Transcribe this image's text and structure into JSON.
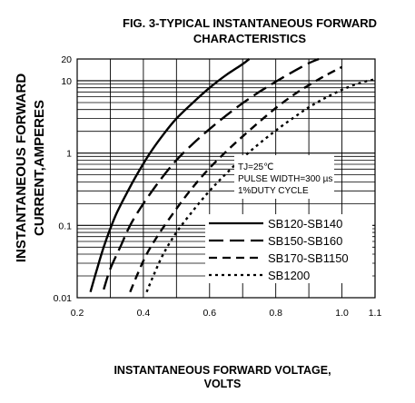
{
  "chart_data": {
    "type": "line",
    "title": "FIG. 3-TYPICAL INSTANTANEOUS FORWARD",
    "subtitle": "CHARACTERISTICS",
    "ylabel_line1": "INSTANTANEOUS FORWARD",
    "ylabel_line2": "CURRENT,AMPERES",
    "xlabel_line1": "INSTANTANEOUS FORWARD VOLTAGE,",
    "xlabel_line2": "VOLTS",
    "xlim": [
      0.2,
      1.1
    ],
    "ylim": [
      0.01,
      20
    ],
    "yscale": "log",
    "grid": true,
    "x_ticks": [
      {
        "value": 0.2,
        "label": "0.2"
      },
      {
        "value": 0.4,
        "label": "0.4"
      },
      {
        "value": 0.6,
        "label": "0.6"
      },
      {
        "value": 0.8,
        "label": "0.8"
      },
      {
        "value": 1.0,
        "label": "1.0"
      },
      {
        "value": 1.1,
        "label": "1.1"
      }
    ],
    "y_ticks": [
      {
        "value": 0.01,
        "label": "0.01"
      },
      {
        "value": 0.1,
        "label": "0.1"
      },
      {
        "value": 1,
        "label": "1"
      },
      {
        "value": 10,
        "label": "10"
      },
      {
        "value": 20,
        "label": "20"
      }
    ],
    "annotations": [
      "TJ=25℃",
      "PULSE WIDTH=300 µs",
      "1%DUTY CYCLE"
    ],
    "legend_position": "lower-right",
    "series": [
      {
        "name": "SB120-SB140",
        "style": "solid",
        "x": [
          0.24,
          0.26,
          0.28,
          0.3,
          0.32,
          0.35,
          0.38,
          0.42,
          0.46,
          0.5,
          0.55,
          0.6,
          0.65,
          0.7,
          0.72
        ],
        "y": [
          0.012,
          0.025,
          0.05,
          0.09,
          0.15,
          0.28,
          0.5,
          1.0,
          1.8,
          3.0,
          5.0,
          8.0,
          12.0,
          17.0,
          20.0
        ]
      },
      {
        "name": "SB150-SB160",
        "style": "long-dash",
        "x": [
          0.28,
          0.3,
          0.33,
          0.36,
          0.4,
          0.45,
          0.5,
          0.55,
          0.6,
          0.65,
          0.7,
          0.75,
          0.8,
          0.85,
          0.9,
          0.93
        ],
        "y": [
          0.013,
          0.025,
          0.05,
          0.1,
          0.2,
          0.42,
          0.8,
          1.35,
          2.15,
          3.3,
          4.9,
          7.0,
          9.7,
          13.2,
          17.5,
          20.0
        ]
      },
      {
        "name": "SB170-SB1150",
        "style": "dash",
        "x": [
          0.36,
          0.38,
          0.41,
          0.45,
          0.5,
          0.55,
          0.6,
          0.65,
          0.7,
          0.75,
          0.8,
          0.85,
          0.9,
          0.95,
          1.0
        ],
        "y": [
          0.012,
          0.02,
          0.04,
          0.08,
          0.17,
          0.34,
          0.62,
          1.05,
          1.7,
          2.7,
          4.2,
          6.2,
          8.7,
          11.8,
          15.5
        ]
      },
      {
        "name": "SB1200",
        "style": "dot",
        "x": [
          0.41,
          0.43,
          0.46,
          0.5,
          0.55,
          0.6,
          0.65,
          0.7,
          0.75,
          0.8,
          0.85,
          0.9,
          0.95,
          1.0,
          1.05,
          1.1
        ],
        "y": [
          0.012,
          0.02,
          0.04,
          0.08,
          0.16,
          0.3,
          0.52,
          0.86,
          1.35,
          2.05,
          3.0,
          4.3,
          5.8,
          7.5,
          9.2,
          10.5
        ]
      }
    ]
  }
}
